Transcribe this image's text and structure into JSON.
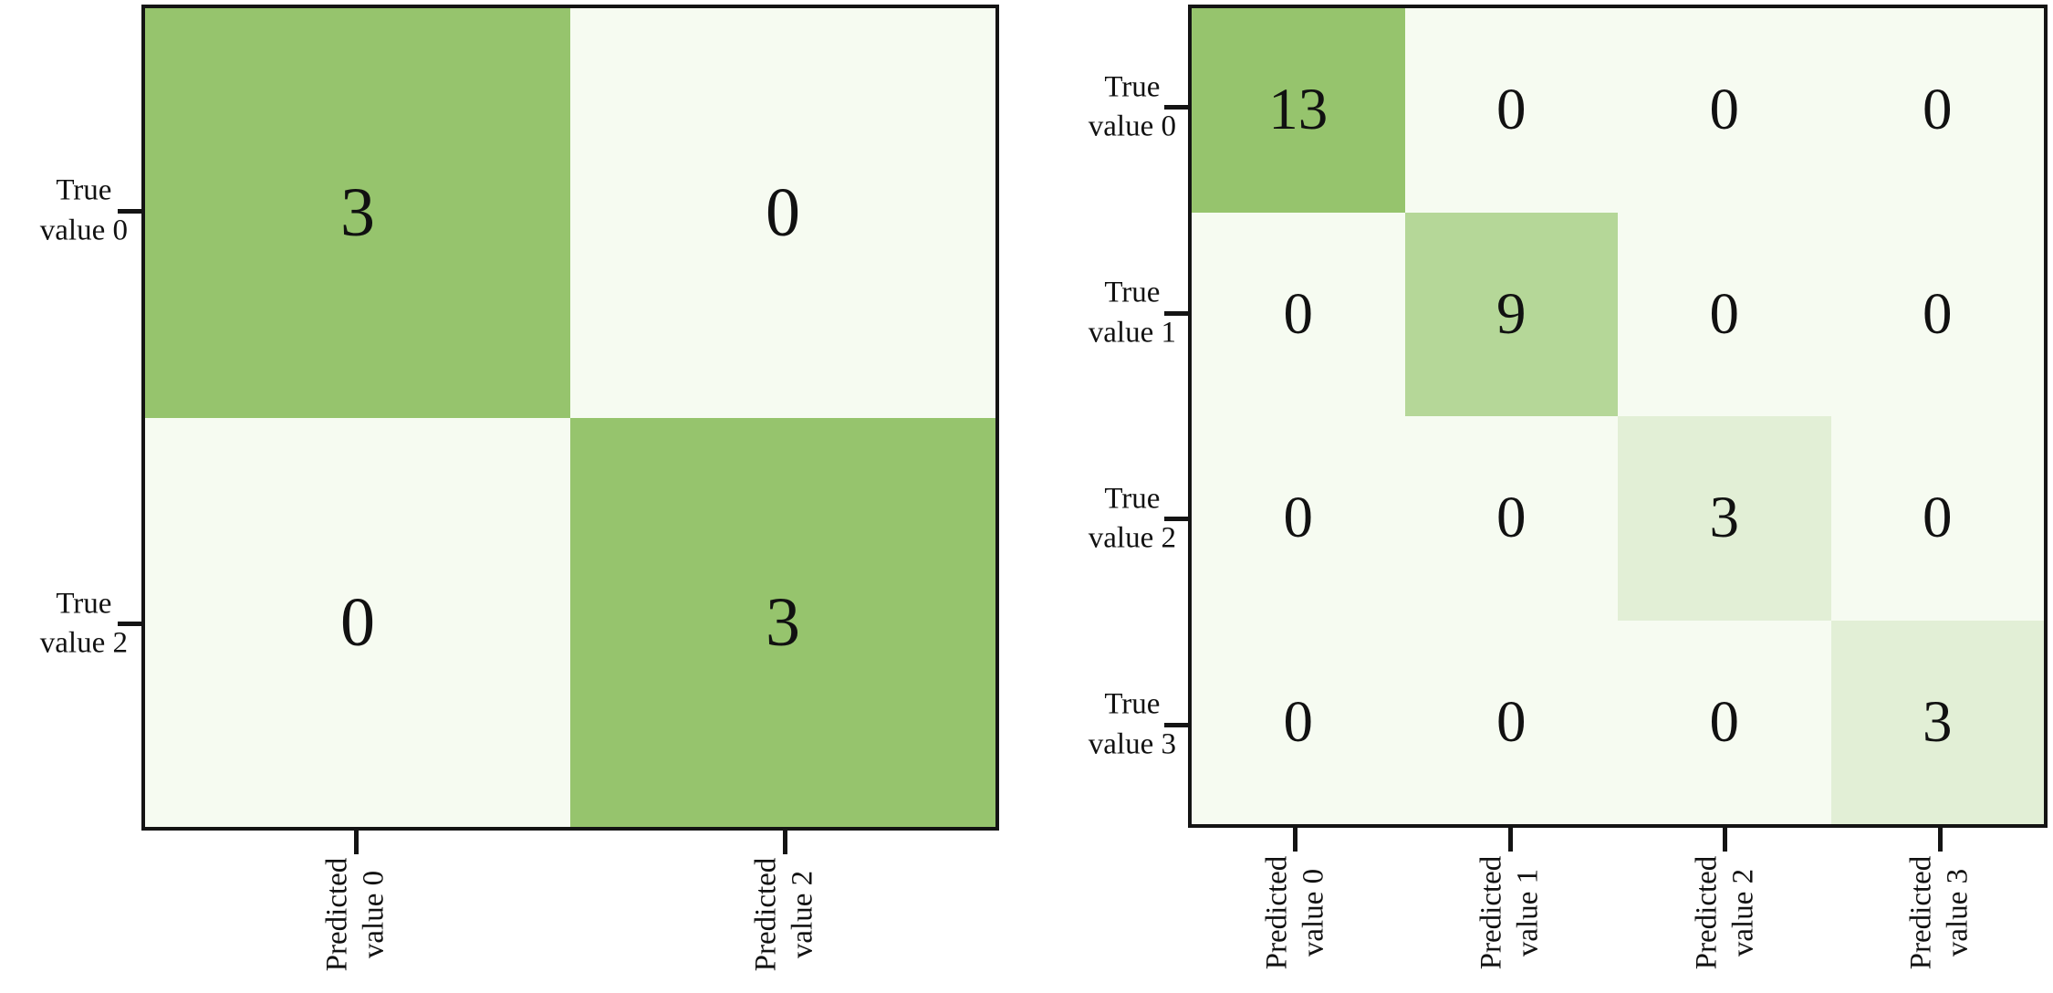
{
  "figure": {
    "background_color": "#ffffff",
    "spine_color": "#141414",
    "text_color": "#111111",
    "title": ""
  },
  "chart_data": [
    {
      "type": "heatmap",
      "name": "confusion-matrix-2x2",
      "title": "",
      "xlabel": "",
      "ylabel": "",
      "row_labels": [
        "True\nvalue 0",
        "True\nvalue 2"
      ],
      "col_labels": [
        "Predicted\nvalue 0",
        "Predicted\nvalue 2"
      ],
      "x_tick_rotation_deg": 90,
      "legend": "none",
      "grid": "off",
      "values": [
        [
          3,
          0
        ],
        [
          0,
          3
        ]
      ],
      "cell_colors": [
        [
          "#96c46d",
          "#f6fbf1"
        ],
        [
          "#f6fbf1",
          "#96c46d"
        ]
      ],
      "colormap_stops": {
        "0": "#f6fbf1",
        "3": "#96c46d"
      }
    },
    {
      "type": "heatmap",
      "name": "confusion-matrix-4x4",
      "title": "",
      "xlabel": "",
      "ylabel": "",
      "row_labels": [
        "True\nvalue 0",
        "True\nvalue 1",
        "True\nvalue 2",
        "True\nvalue 3"
      ],
      "col_labels": [
        "Predicted\nvalue 0",
        "Predicted\nvalue 1",
        "Predicted\nvalue 2",
        "Predicted\nvalue 3"
      ],
      "x_tick_rotation_deg": 90,
      "legend": "none",
      "grid": "off",
      "values": [
        [
          13,
          0,
          0,
          0
        ],
        [
          0,
          9,
          0,
          0
        ],
        [
          0,
          0,
          3,
          0
        ],
        [
          0,
          0,
          0,
          3
        ]
      ],
      "cell_colors": [
        [
          "#96c46d",
          "#f6fbf1",
          "#f6fbf1",
          "#f6fbf1"
        ],
        [
          "#f6fbf1",
          "#b5d798",
          "#f6fbf1",
          "#f6fbf1"
        ],
        [
          "#f6fbf1",
          "#f6fbf1",
          "#e2efd6",
          "#f6fbf1"
        ],
        [
          "#f6fbf1",
          "#f6fbf1",
          "#f6fbf1",
          "#e2efd6"
        ]
      ],
      "colormap_stops": {
        "0": "#f6fbf1",
        "3": "#e2efd6",
        "9": "#b5d798",
        "13": "#96c46d"
      }
    }
  ]
}
